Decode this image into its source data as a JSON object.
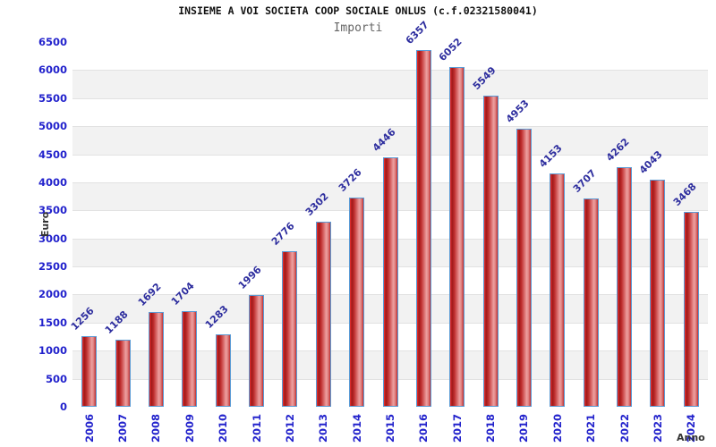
{
  "chart_data": {
    "type": "bar",
    "title": "INSIEME A VOI SOCIETA COOP SOCIALE ONLUS (c.f.02321580041)",
    "subtitle": "Importi",
    "xlabel": "Anno",
    "ylabel": "Euro",
    "categories": [
      "2006",
      "2007",
      "2008",
      "2009",
      "2010",
      "2011",
      "2012",
      "2013",
      "2014",
      "2015",
      "2016",
      "2017",
      "2018",
      "2019",
      "2020",
      "2021",
      "2022",
      "2023",
      "2024"
    ],
    "values": [
      1256,
      1188,
      1692,
      1704,
      1283,
      1996,
      2776,
      3302,
      3726,
      4446,
      6357,
      6052,
      5549,
      4953,
      4153,
      3707,
      4262,
      4043,
      3468
    ],
    "ylim": [
      0,
      6500
    ],
    "ytick_step": 500,
    "grid": "alternating-horizontal-bands",
    "legend": "none",
    "bar_value_labels_rotation_deg": -45,
    "xtick_rotation_deg": -90,
    "colors": {
      "tick_label": "#2222cc",
      "value_label": "#2d2d9e",
      "axis_title": "#333333",
      "title": "#111111",
      "subtitle": "#666666",
      "band_light": "#ffffff",
      "band_dark": "#f2f2f2",
      "grid_line": "#e2e2e2",
      "plot_border": "#cccccc",
      "bar_border": "#5b9bd5",
      "bar_fill_edge": "#c03030",
      "bar_fill_dark": "#a01818",
      "bar_fill_light": "#eda0a0",
      "bar_fill_bright": "#ee3333"
    }
  }
}
